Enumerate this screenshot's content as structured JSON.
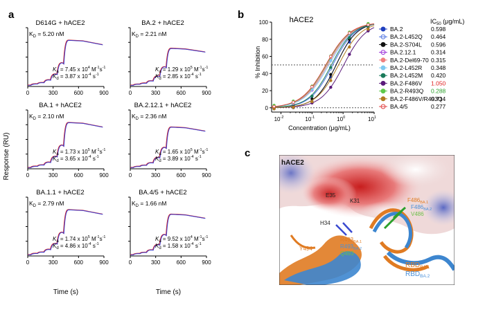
{
  "panels": {
    "a": {
      "label": "a",
      "y_axis_label": "Response (RU)",
      "x_axis_label": "Time (s)",
      "x_ticks": [
        "0",
        "300",
        "600",
        "900"
      ],
      "plots": [
        {
          "title": "D614G + hACE2",
          "kd_text": "K",
          "kd_sub": "D",
          "kd_value": " = 5.20 nM",
          "ka_line": {
            "sym": "K",
            "sub": "a",
            "text": " = 7.45 x 10",
            "exp": "4",
            "unit": " M",
            "unit_exp": "-1",
            "unit2": "s",
            "unit2_exp": "-1"
          },
          "kdis_line": {
            "sym": "K",
            "sub": "d",
            "text": " = 3.87 x 10",
            "exp": "-4",
            "unit": " s",
            "unit_exp": "-1"
          },
          "plateau": 1.0
        },
        {
          "title": "BA.2 + hACE2",
          "kd_text": "K",
          "kd_sub": "D",
          "kd_value": " = 2.21 nM",
          "ka_line": {
            "sym": "K",
            "sub": "a",
            "text": " = 1.29 x 10",
            "exp": "5",
            "unit": " M",
            "unit_exp": "-1",
            "unit2": "s",
            "unit2_exp": "-1"
          },
          "kdis_line": {
            "sym": "K",
            "sub": "d",
            "text": " = 2.85 x 10",
            "exp": "-4",
            "unit": " s",
            "unit_exp": "-1"
          },
          "plateau": 0.82
        },
        {
          "title": "BA.1 + hACE2",
          "kd_text": "K",
          "kd_sub": "D",
          "kd_value": " = 2.10 nM",
          "ka_line": {
            "sym": "K",
            "sub": "a",
            "text": " = 1.73 x 10",
            "exp": "5",
            "unit": " M",
            "unit_exp": "-1",
            "unit2": "s",
            "unit2_exp": "-1"
          },
          "kdis_line": {
            "sym": "K",
            "sub": "d",
            "text": " = 3.65 x 10",
            "exp": "-4",
            "unit": " s",
            "unit_exp": "-1"
          },
          "plateau": 1.0
        },
        {
          "title": "BA.2.12.1 + hACE2",
          "kd_text": "K",
          "kd_sub": "D",
          "kd_value": " = 2.36 nM",
          "ka_line": {
            "sym": "K",
            "sub": "a",
            "text": " = 1.65 x 10",
            "exp": "5",
            "unit": " M",
            "unit_exp": "-1",
            "unit2": "s",
            "unit2_exp": "-1"
          },
          "kdis_line": {
            "sym": "K",
            "sub": "d",
            "text": " = 3.89 x 10",
            "exp": "-4",
            "unit": " s",
            "unit_exp": "-1"
          },
          "plateau": 0.9
        },
        {
          "title": "BA.1.1 + hACE2",
          "kd_text": "K",
          "kd_sub": "D",
          "kd_value": " = 2.79 nM",
          "ka_line": {
            "sym": "K",
            "sub": "a",
            "text": " = 1.74 x 10",
            "exp": "5",
            "unit": " M",
            "unit_exp": "-1",
            "unit2": "s",
            "unit2_exp": "-1"
          },
          "kdis_line": {
            "sym": "K",
            "sub": "d",
            "text": " = 4.86 x 10",
            "exp": "-4",
            "unit": " s",
            "unit_exp": "-1"
          },
          "plateau": 1.0
        },
        {
          "title": "BA.4/5 + hACE2",
          "kd_text": "K",
          "kd_sub": "D",
          "kd_value": " = 1.66 nM",
          "ka_line": {
            "sym": "K",
            "sub": "a",
            "text": " = 9.52 x 10",
            "exp": "4",
            "unit": " M",
            "unit_exp": "-1",
            "unit2": "s",
            "unit2_exp": "-1"
          },
          "kdis_line": {
            "sym": "K",
            "sub": "d",
            "text": " = 1.58 x 10",
            "exp": "-4",
            "unit": " s",
            "unit_exp": "-1"
          },
          "plateau": 0.9
        }
      ]
    },
    "b": {
      "label": "b",
      "title": "hACE2",
      "y_axis_label": "% Inhibition",
      "x_axis_label": "Concentration (μg/mL)",
      "ic50_header": "IC",
      "ic50_sub": "50",
      "ic50_unit": " (μg/mL)",
      "y_ticks": [
        "0",
        "20",
        "40",
        "60",
        "80",
        "100"
      ],
      "x_ticks": [
        {
          "base": "10",
          "exp": "-2"
        },
        {
          "base": "10",
          "exp": "-1"
        },
        {
          "base": "10",
          "exp": "0"
        },
        {
          "base": "10",
          "exp": "1"
        }
      ]
    },
    "c": {
      "label": "c",
      "hace2_label": "hACE2",
      "residues": [
        {
          "text": "E35",
          "color": "#222222"
        },
        {
          "text": "K31",
          "color": "#222222"
        },
        {
          "text": "H34",
          "color": "#222222"
        },
        {
          "text": "F486",
          "sub": "BA.1",
          "color": "#e07b22"
        },
        {
          "text": "F486",
          "sub": "BA.2",
          "color": "#4a90d9"
        },
        {
          "text": "V486",
          "color": "#6cc04a"
        },
        {
          "text": "R493",
          "sub": "BA.1",
          "color": "#e07b22"
        },
        {
          "text": "R493",
          "sub": "BA.2",
          "color": "#4a90d9"
        },
        {
          "text": "Q493",
          "color": "#6cc04a"
        },
        {
          "text": "Y494",
          "color": "#e07b22"
        }
      ],
      "legend": [
        {
          "text": "RBD",
          "sub": "BA.1",
          "color": "#e07b22"
        },
        {
          "text": "RBD",
          "sub": "BA.2",
          "color": "#4a90d9"
        }
      ]
    }
  },
  "colors": {
    "fit_line": "#d62728",
    "data_line": "#3b3fd1",
    "structure_orange": "#e07b22",
    "structure_blue": "#3d86cf",
    "highlight_red": "#e02020",
    "highlight_green": "#2ca02c"
  },
  "chart_data": {
    "type": "line",
    "title": "hACE2",
    "xlabel": "Concentration (μg/mL)",
    "ylabel": "% Inhibition",
    "x_scale": "log",
    "xlim": [
      0.005,
      10
    ],
    "ylim": [
      -5,
      100
    ],
    "reference_line_y": 50,
    "series": [
      {
        "name": "BA.2",
        "ic50": "0.598",
        "ic50_value": 0.598,
        "color": "#1f3fbf",
        "marker": "triangle-down-filled",
        "hill": 1.3
      },
      {
        "name": "BA.2-L452Q",
        "ic50": "0.464",
        "ic50_value": 0.464,
        "color": "#4a6fe0",
        "marker": "triangle-down-open",
        "hill": 1.2
      },
      {
        "name": "BA.2-S704L",
        "ic50": "0.596",
        "ic50_value": 0.596,
        "color": "#111111",
        "marker": "hexagon-filled",
        "hill": 1.3
      },
      {
        "name": "BA.2.12.1",
        "ic50": "0.314",
        "ic50_value": 0.314,
        "color": "#9b30d9",
        "marker": "triangle-down-open",
        "hill": 1.1
      },
      {
        "name": "BA.2-Del69-70",
        "ic50": "0.315",
        "ic50_value": 0.315,
        "color": "#f08080",
        "marker": "square-filled",
        "hill": 1.1
      },
      {
        "name": "BA.2-L452R",
        "ic50": "0.348",
        "ic50_value": 0.348,
        "color": "#7ec8f0",
        "marker": "star",
        "hill": 1.1
      },
      {
        "name": "BA.2-L452M",
        "ic50": "0.420",
        "ic50_value": 0.42,
        "color": "#1a7a5a",
        "marker": "triangle-up-filled",
        "hill": 1.2
      },
      {
        "name": "BA.2-F486V",
        "ic50": "1.050",
        "ic50_value": 1.05,
        "color": "#5a1a7a",
        "marker": "diamond-filled",
        "hill": 1.2,
        "ic50_color": "#e02020"
      },
      {
        "name": "BA.2-R493Q",
        "ic50": "0.288",
        "ic50_value": 0.288,
        "color": "#5ec94a",
        "marker": "star",
        "hill": 1.1,
        "ic50_color": "#2ca02c"
      },
      {
        "name": "BA.2-F486V/R493Q",
        "ic50": "0.714",
        "ic50_value": 0.714,
        "color": "#b07a20",
        "marker": "circle-cross",
        "hill": 1.2
      },
      {
        "name": "BA.4/5",
        "ic50": "0.277",
        "ic50_value": 0.277,
        "color": "#e04040",
        "marker": "circle-open",
        "hill": 1.1
      }
    ]
  }
}
